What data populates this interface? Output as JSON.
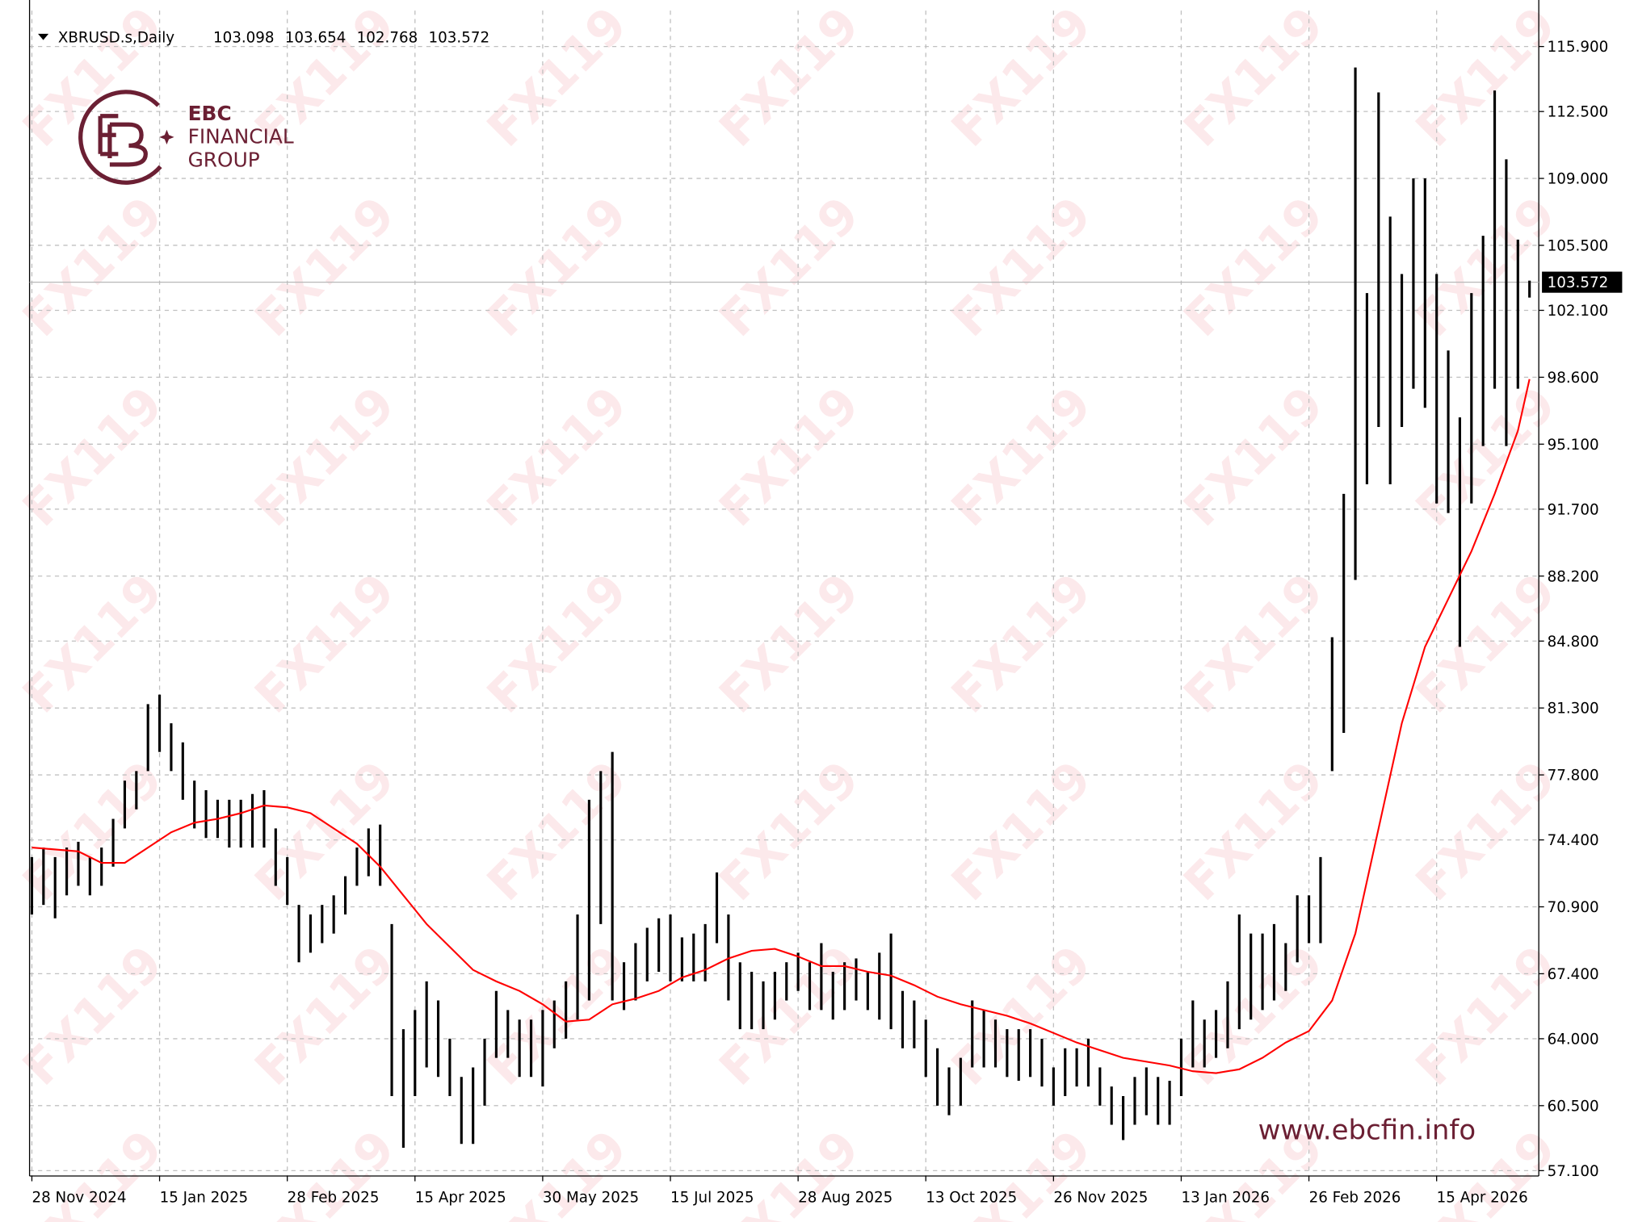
{
  "chart_data": {
    "type": "hilo",
    "symbol": "XBRUSD.s,Daily",
    "ohlc": [
      103.098,
      103.654,
      102.768,
      103.572
    ],
    "brand": [
      "EBC",
      "FINANCIAL",
      "GROUP"
    ],
    "website": "www.ebcfin.info",
    "watermark": "FX119",
    "bar_color": "#000000",
    "grid": true,
    "xlim": [
      -0.2,
      129.8
    ],
    "xticks": [
      {
        "value": 0,
        "label": "28 Nov 2024"
      },
      {
        "value": 11,
        "label": "15 Jan 2025"
      },
      {
        "value": 22,
        "label": "28 Feb 2025"
      },
      {
        "value": 33,
        "label": "15 Apr 2025"
      },
      {
        "value": 44,
        "label": "30 May 2025"
      },
      {
        "value": 55,
        "label": "15 Jul 2025"
      },
      {
        "value": 66,
        "label": "28 Aug 2025"
      },
      {
        "value": 77,
        "label": "13 Oct 2025"
      },
      {
        "value": 88,
        "label": "26 Nov 2025"
      },
      {
        "value": 99,
        "label": "13 Jan 2026"
      },
      {
        "value": 110,
        "label": "26 Feb 2026"
      },
      {
        "value": 121,
        "label": "15 Apr 2026"
      }
    ],
    "ylim": [
      56.82,
      117.78
    ],
    "yticks": [
      {
        "value": 57.1,
        "label": "57.100"
      },
      {
        "value": 60.5,
        "label": "60.500"
      },
      {
        "value": 64.0,
        "label": "64.000"
      },
      {
        "value": 67.4,
        "label": "67.400"
      },
      {
        "value": 70.9,
        "label": "70.900"
      },
      {
        "value": 74.4,
        "label": "74.400"
      },
      {
        "value": 77.8,
        "label": "77.800"
      },
      {
        "value": 81.3,
        "label": "81.300"
      },
      {
        "value": 84.8,
        "label": "84.800"
      },
      {
        "value": 88.2,
        "label": "88.200"
      },
      {
        "value": 91.7,
        "label": "91.700"
      },
      {
        "value": 95.1,
        "label": "95.100"
      },
      {
        "value": 98.6,
        "label": "98.600"
      },
      {
        "value": 102.1,
        "label": "102.100"
      },
      {
        "value": 105.5,
        "label": "105.500"
      },
      {
        "value": 109.0,
        "label": "109.000"
      },
      {
        "value": 112.5,
        "label": "112.500"
      },
      {
        "value": 115.9,
        "label": "115.900"
      }
    ],
    "last_price": 103.572,
    "high": [
      73.5,
      74,
      73.5,
      74,
      74.3,
      73.5,
      74,
      75.5,
      77.5,
      78,
      81.5,
      82,
      80.5,
      79.5,
      77.5,
      77,
      76.5,
      76.5,
      76.5,
      76.8,
      77,
      75,
      73.5,
      71,
      70.5,
      71,
      71.5,
      72.5,
      74,
      75,
      75.2,
      70,
      64.5,
      65.5,
      67,
      66,
      64,
      62,
      62.5,
      64,
      66.5,
      65.5,
      65,
      65,
      65.5,
      66,
      67,
      70.5,
      76.5,
      78,
      79,
      68,
      69,
      69.8,
      70.3,
      70.5,
      69.3,
      69.5,
      70,
      72.7,
      70.5,
      68,
      67.5,
      67,
      67.5,
      68,
      68.5,
      68,
      69,
      67.5,
      68,
      68.2,
      67.5,
      68.5,
      69.5,
      66.5,
      66,
      65,
      63.5,
      62.5,
      63,
      66,
      65.5,
      65,
      64.5,
      64.5,
      64.5,
      64,
      62.5,
      63.5,
      63.5,
      64,
      62.5,
      61.5,
      61,
      62,
      62.5,
      62,
      61.8,
      64,
      66,
      65,
      65.5,
      67,
      70.5,
      69.5,
      69.5,
      70,
      69,
      71.5,
      71.5,
      73.5,
      85,
      92.5,
      114.8,
      103,
      113.5,
      107,
      104,
      109,
      109,
      104,
      100,
      96.5,
      103,
      106,
      113.6,
      110,
      105.8,
      103.654
    ],
    "low": [
      70.5,
      71,
      70.3,
      71.5,
      72,
      71.5,
      72,
      73,
      75,
      76,
      78,
      79,
      78,
      76.5,
      75,
      74.5,
      74.5,
      74,
      74,
      74,
      74,
      72,
      71,
      68,
      68.5,
      69,
      69.5,
      70.5,
      72,
      72.5,
      72,
      61,
      58.3,
      61,
      62.5,
      62,
      61,
      58.5,
      58.5,
      60.5,
      63,
      63,
      62,
      62,
      61.5,
      63.5,
      64,
      65,
      66,
      70,
      66,
      65.5,
      66,
      67,
      67.5,
      67,
      67,
      67,
      67,
      69,
      66,
      64.5,
      64.5,
      64.5,
      65,
      66,
      66.5,
      65.5,
      65.5,
      65,
      65.5,
      66,
      65.5,
      65,
      64.5,
      63.5,
      63.5,
      62,
      60.5,
      60,
      60.5,
      62.5,
      62.5,
      62.5,
      62,
      61.8,
      62,
      61.5,
      60.5,
      61,
      61.5,
      61.5,
      60.5,
      59.5,
      58.7,
      59.5,
      60,
      59.5,
      59.5,
      61,
      62.5,
      62.5,
      63,
      63.5,
      64.5,
      65,
      65.5,
      66,
      66.5,
      68,
      69,
      69,
      78,
      80,
      88,
      93,
      96,
      93,
      96,
      98,
      97,
      92,
      91.5,
      84.5,
      92,
      95,
      98,
      95,
      98,
      102.768
    ],
    "ma": {
      "color": "#ff0000",
      "x": [
        0,
        2,
        4,
        6,
        8,
        10,
        12,
        14,
        16,
        18,
        20,
        22,
        24,
        26,
        28,
        30,
        32,
        34,
        36,
        38,
        40,
        42,
        44,
        46,
        48,
        50,
        52,
        54,
        56,
        58,
        60,
        62,
        64,
        66,
        68,
        70,
        72,
        74,
        76,
        78,
        80,
        82,
        84,
        86,
        88,
        90,
        92,
        94,
        96,
        98,
        100,
        102,
        104,
        106,
        108,
        110,
        112,
        114,
        116,
        118,
        120,
        122,
        124,
        126,
        128,
        129
      ],
      "values": [
        74.0,
        73.9,
        73.8,
        73.2,
        73.2,
        74.0,
        74.8,
        75.3,
        75.5,
        75.8,
        76.2,
        76.1,
        75.8,
        75.0,
        74.2,
        73.0,
        71.5,
        70.0,
        68.8,
        67.6,
        67.0,
        66.5,
        65.8,
        64.9,
        65.0,
        65.8,
        66.1,
        66.5,
        67.2,
        67.6,
        68.2,
        68.6,
        68.7,
        68.3,
        67.8,
        67.8,
        67.5,
        67.3,
        66.8,
        66.2,
        65.8,
        65.5,
        65.2,
        64.8,
        64.3,
        63.8,
        63.4,
        63.0,
        62.8,
        62.6,
        62.3,
        62.2,
        62.4,
        63.0,
        63.8,
        64.4,
        66.0,
        69.5,
        75.0,
        80.5,
        84.5,
        87.0,
        89.5,
        92.5,
        95.8,
        98.5
      ]
    }
  }
}
